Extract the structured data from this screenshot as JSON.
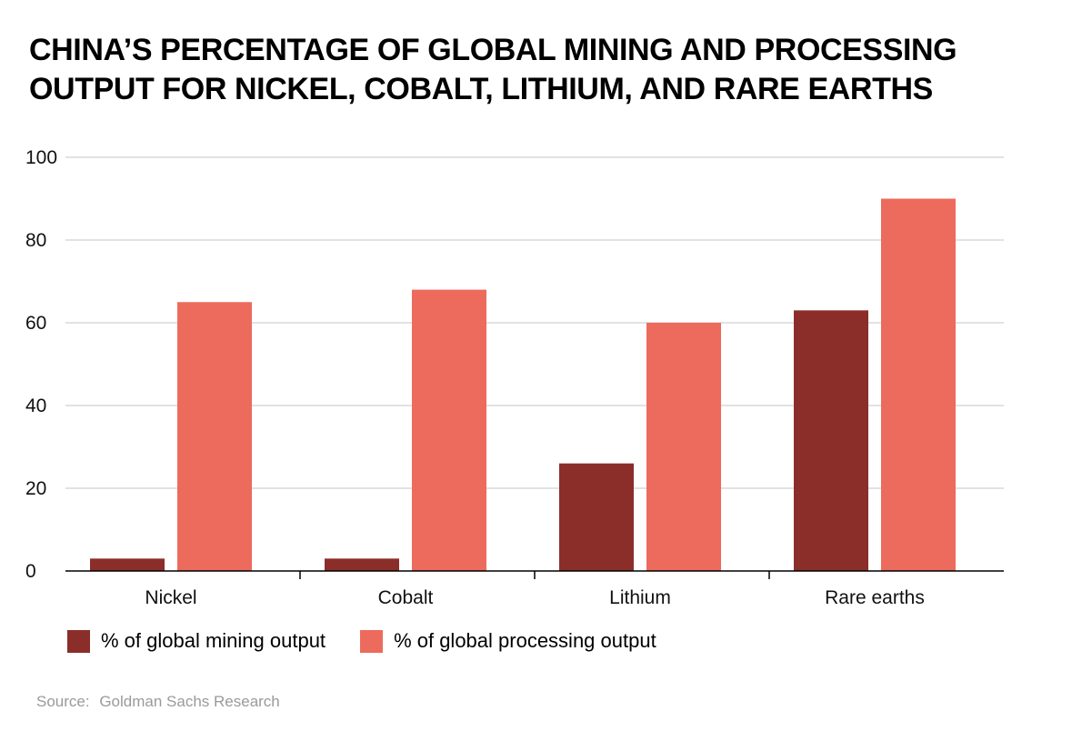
{
  "chart_data": {
    "type": "bar",
    "title": "China’s percentage of global mining and processing output for nickel, cobalt, lithium, and rare earths",
    "categories": [
      "Nickel",
      "Cobalt",
      "Lithium",
      "Rare earths"
    ],
    "series": [
      {
        "name": "% of global mining output",
        "color": "#8b2e2a",
        "values": [
          3,
          3,
          26,
          63
        ]
      },
      {
        "name": "% of global processing output",
        "color": "#ec6b5d",
        "values": [
          65,
          68,
          60,
          90
        ]
      }
    ],
    "ylim": [
      0,
      100
    ],
    "yticks": [
      "0",
      "20",
      "40",
      "60",
      "80",
      "100"
    ],
    "xlabel": "",
    "ylabel": "",
    "grid": true,
    "legend": "bottom-left"
  },
  "source": {
    "label": "Source:",
    "text": "Goldman Sachs Research"
  }
}
